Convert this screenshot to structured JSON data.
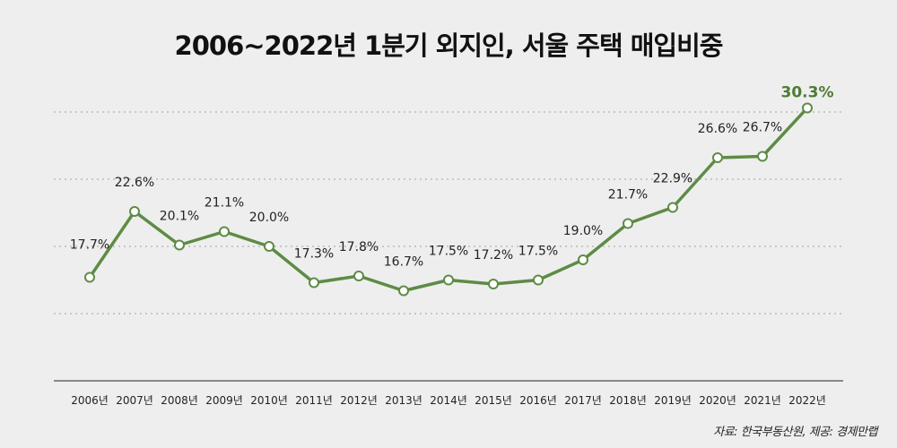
{
  "title": "2006~2022년 1분기 외지인, 서울 주택 매입비중",
  "source": "자료: 한국부동산원, 제공: 경제만랩",
  "colors": {
    "line": "#5e8b45",
    "highlight_label": "#4e7a35",
    "grid": "#bbbbbb",
    "axis": "#888888"
  },
  "chart_data": {
    "type": "line",
    "title": "2006~2022년 1분기 외지인, 서울 주택 매입비중",
    "categories": [
      "2006년",
      "2007년",
      "2008년",
      "2009년",
      "2010년",
      "2011년",
      "2012년",
      "2013년",
      "2014년",
      "2015년",
      "2016년",
      "2017년",
      "2018년",
      "2019년",
      "2020년",
      "2021년",
      "2022년"
    ],
    "values": [
      17.7,
      22.6,
      20.1,
      21.1,
      20.0,
      17.3,
      17.8,
      16.7,
      17.5,
      17.2,
      17.5,
      19.0,
      21.7,
      22.9,
      26.6,
      26.7,
      30.3
    ],
    "labels": [
      "17.7%",
      "22.6%",
      "20.1%",
      "21.1%",
      "20.0%",
      "17.3%",
      "17.8%",
      "16.7%",
      "17.5%",
      "17.2%",
      "17.5%",
      "19.0%",
      "21.7%",
      "22.9%",
      "26.6%",
      "26.7%",
      "30.3%"
    ],
    "unit": "%",
    "ylim": [
      10,
      30
    ],
    "grid": true,
    "gridlines": [
      15,
      20,
      25,
      30
    ],
    "highlight_last": true
  }
}
